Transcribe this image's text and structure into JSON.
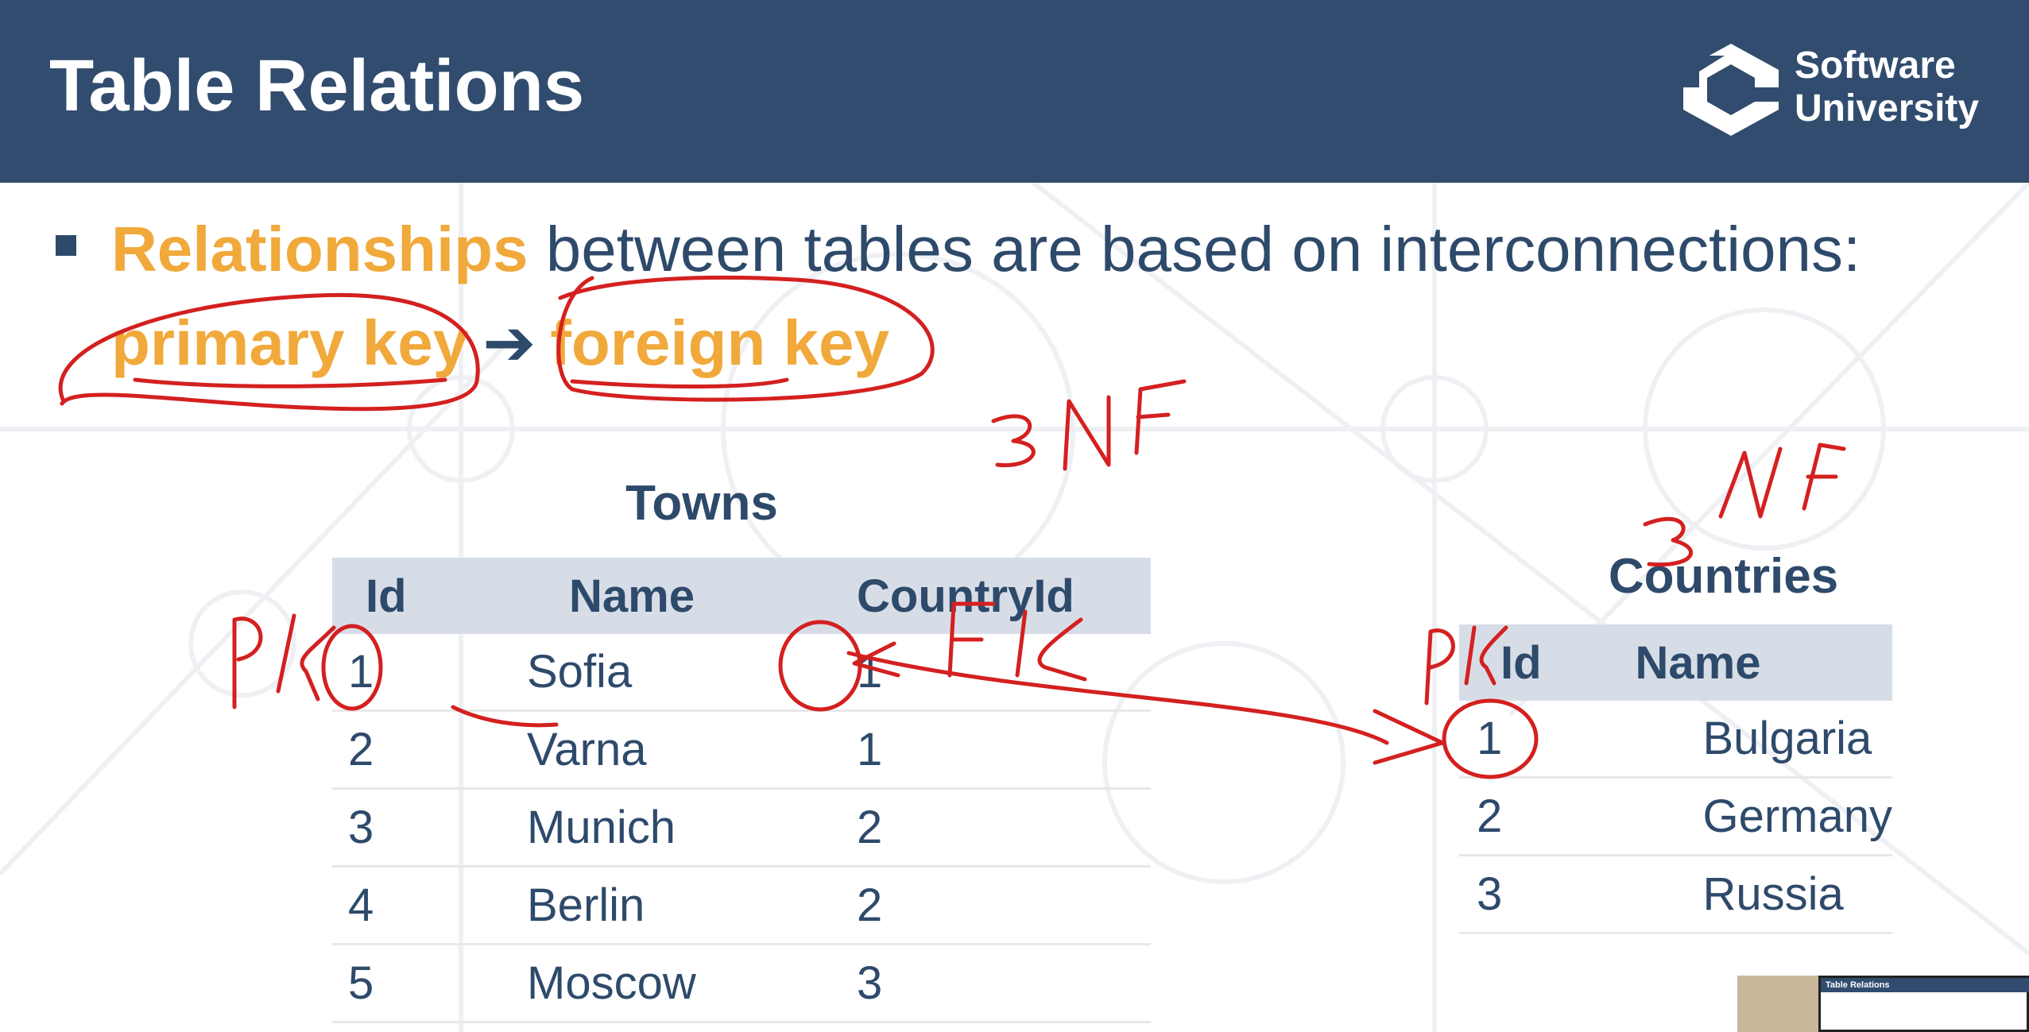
{
  "header": {
    "title": "Table Relations",
    "logo_line1": "Software",
    "logo_line2": "University"
  },
  "bullet": {
    "highlight": "Relationships",
    "rest": " between tables are based on interconnections:",
    "primary_key": "primary key",
    "arrow": "➔",
    "foreign_key": "foreign key"
  },
  "towns": {
    "title": "Towns",
    "columns": [
      "Id",
      "Name",
      "CountryId"
    ],
    "rows": [
      [
        "1",
        "Sofia",
        "1"
      ],
      [
        "2",
        "Varna",
        "1"
      ],
      [
        "3",
        "Munich",
        "2"
      ],
      [
        "4",
        "Berlin",
        "2"
      ],
      [
        "5",
        "Moscow",
        "3"
      ]
    ]
  },
  "countries": {
    "title": "Countries",
    "columns": [
      "Id",
      "Name"
    ],
    "rows": [
      [
        "1",
        "Bulgaria"
      ],
      [
        "2",
        "Germany"
      ],
      [
        "3",
        "Russia"
      ]
    ]
  },
  "annotations": {
    "ink_color": "#d42020",
    "notes": [
      "3NF",
      "3NF",
      "PK",
      "FK",
      "PK"
    ]
  },
  "thumbnail": {
    "title": "Table Relations"
  },
  "colors": {
    "header_bg": "#314c6e",
    "accent": "#f0a93a",
    "text": "#2e4a6b",
    "table_header_bg": "#d7dde6"
  }
}
